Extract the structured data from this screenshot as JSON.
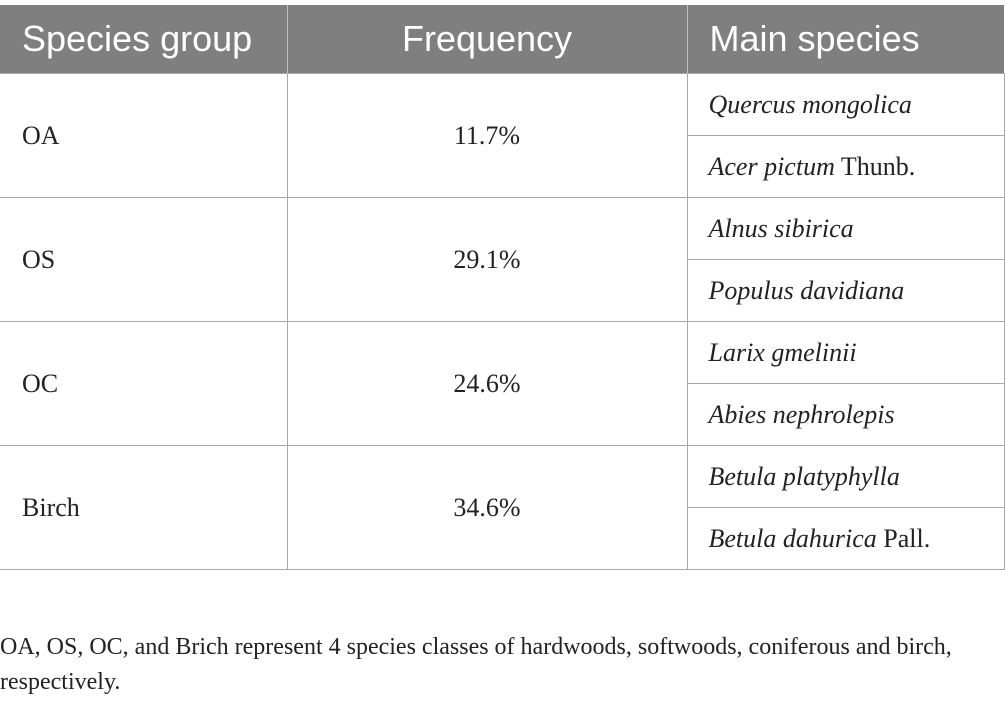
{
  "headers": {
    "group": "Species group",
    "frequency": "Frequency",
    "species": "Main species"
  },
  "rows": [
    {
      "group": "OA",
      "frequency": "11.7%",
      "species": [
        {
          "italic": "Quercus mongolica",
          "plain": ""
        },
        {
          "italic": "Acer pictum",
          "plain": " Thunb."
        }
      ]
    },
    {
      "group": "OS",
      "frequency": "29.1%",
      "species": [
        {
          "italic": "Alnus sibirica",
          "plain": ""
        },
        {
          "italic": "Populus davidiana",
          "plain": ""
        }
      ]
    },
    {
      "group": "OC",
      "frequency": "24.6%",
      "species": [
        {
          "italic": "Larix gmelinii",
          "plain": ""
        },
        {
          "italic": "Abies nephrolepis",
          "plain": ""
        }
      ]
    },
    {
      "group": "Birch",
      "frequency": "34.6%",
      "species": [
        {
          "italic": "Betula platyphylla",
          "plain": ""
        },
        {
          "italic": "Betula dahurica",
          "plain": " Pall."
        }
      ]
    }
  ],
  "footnote": "OA, OS, OC, and Brich represent 4 species classes of hardwoods, softwoods, coniferous and birch, respectively."
}
